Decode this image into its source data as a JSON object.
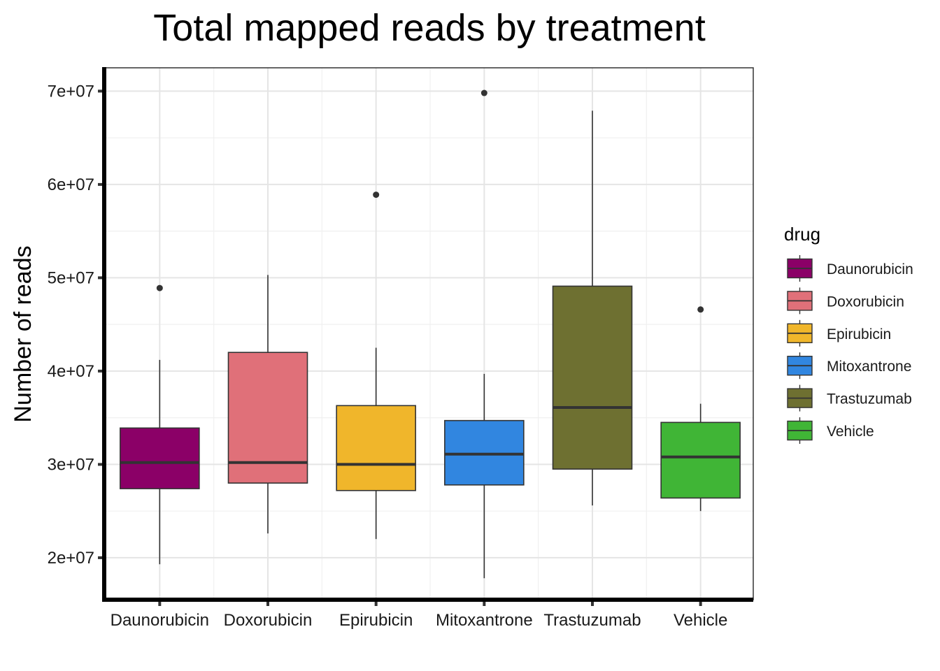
{
  "chart_data": {
    "type": "boxplot",
    "title": "Total mapped reads by treatment",
    "xlabel": "",
    "ylabel": "Number of reads",
    "ylim": [
      15500000,
      72500000
    ],
    "yticks": [
      20000000,
      30000000,
      40000000,
      50000000,
      60000000,
      70000000
    ],
    "ytick_labels": [
      "2e+07",
      "3e+07",
      "4e+07",
      "5e+07",
      "6e+07",
      "7e+07"
    ],
    "grid": true,
    "legend": {
      "title": "drug",
      "position": "right"
    },
    "categories": [
      "Daunorubicin",
      "Doxorubicin",
      "Epirubicin",
      "Mitoxantrone",
      "Trastuzumab",
      "Vehicle"
    ],
    "colors": [
      "#8B0067",
      "#E07079",
      "#F0B62B",
      "#3186E0",
      "#6E7031",
      "#40B536"
    ],
    "series": [
      {
        "name": "Daunorubicin",
        "whisker_low": 19300000,
        "q1": 27400000,
        "median": 30200000,
        "q3": 33900000,
        "whisker_high": 41200000,
        "outliers": [
          48900000
        ]
      },
      {
        "name": "Doxorubicin",
        "whisker_low": 22600000,
        "q1": 28000000,
        "median": 30200000,
        "q3": 42000000,
        "whisker_high": 50300000,
        "outliers": []
      },
      {
        "name": "Epirubicin",
        "whisker_low": 22000000,
        "q1": 27200000,
        "median": 30000000,
        "q3": 36300000,
        "whisker_high": 42500000,
        "outliers": [
          58900000
        ]
      },
      {
        "name": "Mitoxantrone",
        "whisker_low": 17800000,
        "q1": 27800000,
        "median": 31100000,
        "q3": 34700000,
        "whisker_high": 39700000,
        "outliers": [
          69800000
        ]
      },
      {
        "name": "Trastuzumab",
        "whisker_low": 25600000,
        "q1": 29500000,
        "median": 36100000,
        "q3": 49100000,
        "whisker_high": 67900000,
        "outliers": []
      },
      {
        "name": "Vehicle",
        "whisker_low": 25000000,
        "q1": 26400000,
        "median": 30800000,
        "q3": 34500000,
        "whisker_high": 36500000,
        "outliers": [
          46600000
        ]
      }
    ]
  }
}
